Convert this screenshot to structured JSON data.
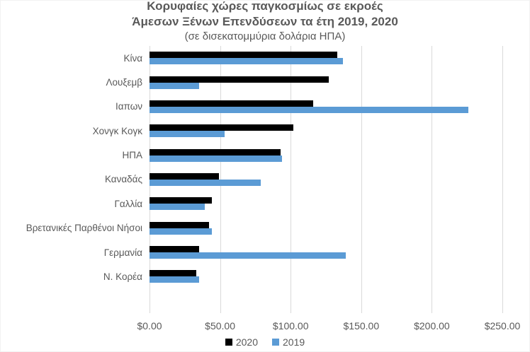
{
  "title": {
    "line1": "Κορυφαίες χώρες παγκοσμίως σε εκροές",
    "line2": "Άμεσων Ξένων Επενδύσεων τα έτη 2019, 2020",
    "subtitle": "(σε δισεκατομμύρια δολάρια ΗΠΑ)"
  },
  "colors": {
    "series_2020": "#000000",
    "series_2019": "#5B9BD5",
    "gridline": "#D9D9D9",
    "text": "#595959"
  },
  "chart_data": {
    "type": "bar",
    "orientation": "horizontal",
    "title": "Κορυφαίες χώρες παγκοσμίως σε εκροές Άμεσων Ξένων Επενδύσεων τα έτη 2019, 2020",
    "subtitle": "(σε δισεκατομμύρια δολάρια ΗΠΑ)",
    "categories": [
      "Κίνα",
      "Λουξεμβ",
      "Ιαπων",
      "Χονγκ Κογκ",
      "ΗΠΑ",
      "Καναδάς",
      "Γαλλία",
      "Βρετανικές Παρθένοι Νήσοι",
      "Γερμανία",
      "Ν. Κορέα"
    ],
    "series": [
      {
        "name": "2020",
        "color": "#000000",
        "values": [
          133,
          127,
          116,
          102,
          93,
          49,
          44,
          42,
          35,
          33
        ]
      },
      {
        "name": "2019",
        "color": "#5B9BD5",
        "values": [
          137,
          35,
          226,
          53,
          94,
          79,
          39,
          44,
          139,
          35
        ]
      }
    ],
    "xlabel": "",
    "ylabel": "",
    "xlim": [
      0,
      250
    ],
    "x_tick_values": [
      0,
      50,
      100,
      150,
      200,
      250
    ],
    "x_tick_labels": [
      "$0.00",
      "$50.00",
      "$100.00",
      "$150.00",
      "$200.00",
      "$250.00"
    ],
    "grid": "vertical",
    "legend_position": "bottom",
    "empty_trailing_slots": 1
  },
  "legend": {
    "items": [
      {
        "label": "2020",
        "color": "#000000"
      },
      {
        "label": "2019",
        "color": "#5B9BD5"
      }
    ]
  }
}
